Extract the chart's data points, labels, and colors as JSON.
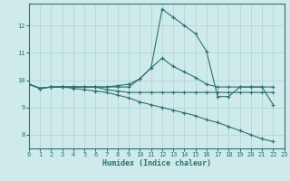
{
  "xlabel": "Humidex (Indice chaleur)",
  "bg_color": "#ceeaea",
  "line_color": "#2d7070",
  "grid_color": "#aed4d4",
  "x_range": [
    0,
    23
  ],
  "y_range": [
    7.5,
    12.8
  ],
  "yticks": [
    8,
    9,
    10,
    11,
    12
  ],
  "xticks": [
    0,
    1,
    2,
    3,
    4,
    5,
    6,
    7,
    8,
    9,
    10,
    11,
    12,
    13,
    14,
    15,
    16,
    17,
    18,
    19,
    20,
    21,
    22,
    23
  ],
  "lines": [
    {
      "x": [
        0,
        1,
        2,
        3,
        4,
        5,
        6,
        7,
        8,
        9,
        10,
        11,
        12,
        13,
        14,
        15,
        16,
        17,
        18,
        19,
        20,
        21,
        22
      ],
      "y": [
        9.85,
        9.7,
        9.75,
        9.75,
        9.75,
        9.75,
        9.75,
        9.75,
        9.75,
        9.75,
        10.05,
        10.45,
        12.6,
        12.3,
        12.0,
        11.7,
        11.05,
        9.4,
        9.4,
        9.75,
        9.75,
        9.75,
        9.1
      ]
    },
    {
      "x": [
        0,
        1,
        2,
        3,
        4,
        5,
        6,
        7,
        8,
        9,
        10,
        11,
        12,
        13,
        14,
        15,
        16,
        17,
        18,
        19,
        20,
        21,
        22
      ],
      "y": [
        9.85,
        9.7,
        9.75,
        9.75,
        9.75,
        9.75,
        9.75,
        9.75,
        9.8,
        9.85,
        10.05,
        10.45,
        10.8,
        10.5,
        10.3,
        10.1,
        9.85,
        9.75,
        9.75,
        9.75,
        9.75,
        9.75,
        9.75
      ]
    },
    {
      "x": [
        0,
        1,
        2,
        3,
        4,
        5,
        6,
        7,
        8,
        9,
        10,
        11,
        12,
        13,
        14,
        15,
        16,
        17,
        18,
        19,
        20,
        21,
        22
      ],
      "y": [
        9.85,
        9.7,
        9.75,
        9.75,
        9.75,
        9.75,
        9.75,
        9.65,
        9.6,
        9.55,
        9.55,
        9.55,
        9.55,
        9.55,
        9.55,
        9.55,
        9.55,
        9.55,
        9.55,
        9.55,
        9.55,
        9.55,
        9.55
      ]
    },
    {
      "x": [
        0,
        1,
        2,
        3,
        4,
        5,
        6,
        7,
        8,
        9,
        10,
        11,
        12,
        13,
        14,
        15,
        16,
        17,
        18,
        19,
        20,
        21,
        22
      ],
      "y": [
        9.85,
        9.7,
        9.75,
        9.75,
        9.7,
        9.65,
        9.6,
        9.55,
        9.45,
        9.35,
        9.2,
        9.1,
        9.0,
        8.9,
        8.8,
        8.7,
        8.55,
        8.45,
        8.3,
        8.15,
        8.0,
        7.85,
        7.75
      ]
    }
  ]
}
